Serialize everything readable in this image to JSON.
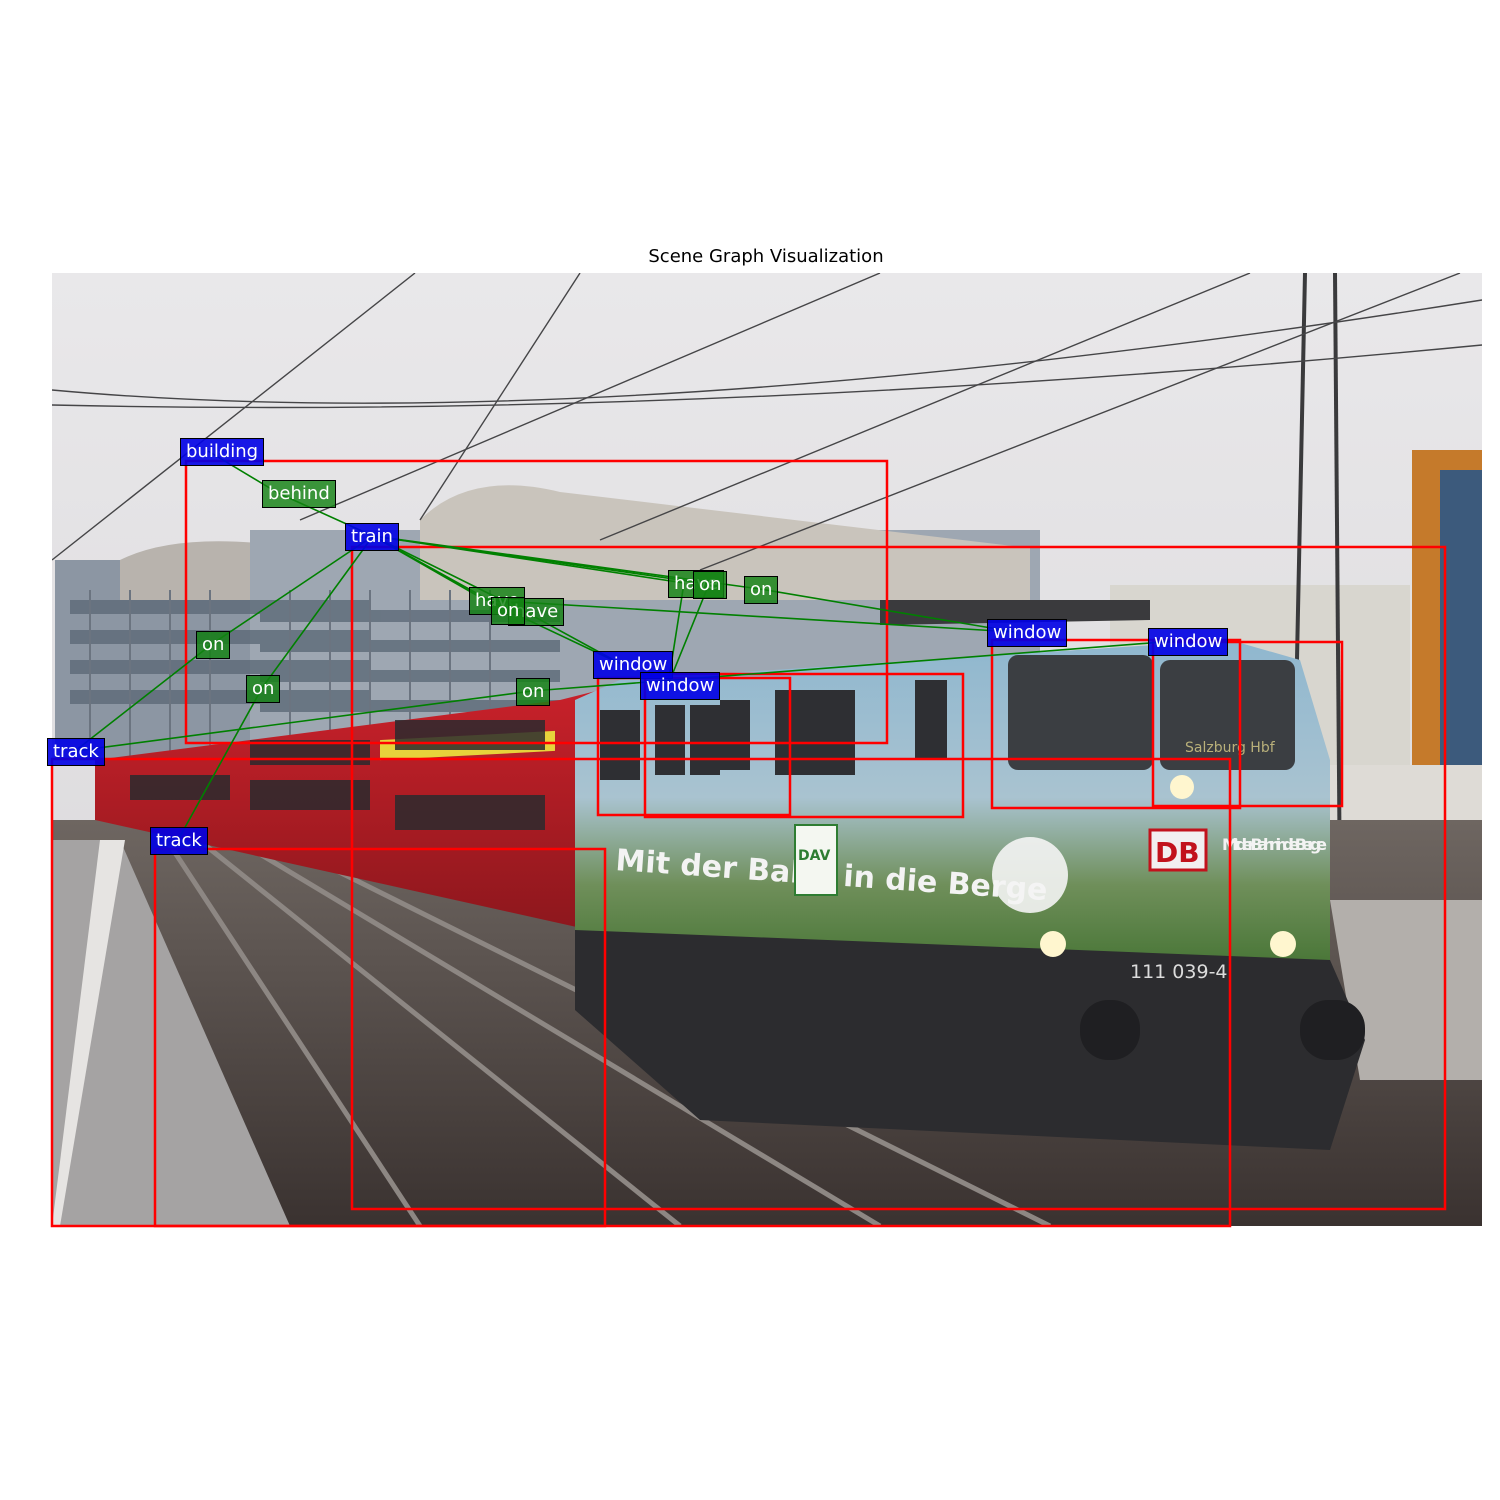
{
  "figure": {
    "title": "Scene Graph Visualization"
  },
  "colors": {
    "box": "#ff0000",
    "edge": "#008000",
    "node_bg": "#0000e6",
    "rel_bg": "#148214"
  },
  "photo_text": {
    "train_side_slogan": "Mit der Bahn in die Berge",
    "front_slogan": "Mit der Bahn in die Berge",
    "logo": "DB",
    "partner_logo": "DAV",
    "number": "111 039-4",
    "destination": "Salzburg Hbf"
  },
  "nodes": [
    {
      "id": "building",
      "label": "building"
    },
    {
      "id": "train",
      "label": "train"
    },
    {
      "id": "window1",
      "label": "window"
    },
    {
      "id": "window2",
      "label": "window"
    },
    {
      "id": "window3",
      "label": "window"
    },
    {
      "id": "window4",
      "label": "window"
    },
    {
      "id": "track1",
      "label": "track"
    },
    {
      "id": "track2",
      "label": "track"
    }
  ],
  "relations": [
    {
      "label": "behind",
      "from": "building",
      "to": "train"
    },
    {
      "label": "have",
      "from": "train",
      "to": "window1"
    },
    {
      "label": "have",
      "from": "train",
      "to": "window3"
    },
    {
      "label": "have",
      "from": "train",
      "to": "window4"
    },
    {
      "label": "on",
      "from": "train",
      "to": "track1"
    },
    {
      "label": "on",
      "from": "train",
      "to": "track2"
    },
    {
      "label": "on",
      "from": "window1",
      "to": "train"
    },
    {
      "label": "on",
      "from": "window3",
      "to": "train"
    },
    {
      "label": "on",
      "from": "window4",
      "to": "train"
    },
    {
      "label": "on",
      "from": "window2",
      "to": "track1"
    }
  ]
}
